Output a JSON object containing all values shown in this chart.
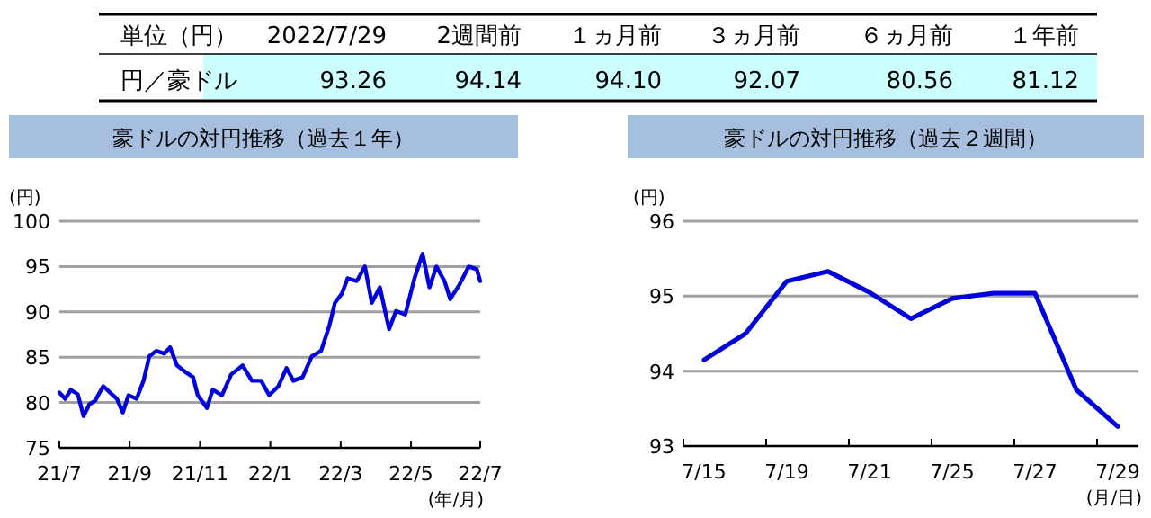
{
  "chart_data": [
    {
      "type": "other",
      "annotations": [
        "単位（円）",
        "2022/7/29",
        "2週間前",
        "１ヵ月前",
        "３ヵ月前",
        "６ヵ月前",
        "１年前",
        "円／豪ドル",
        "93.26",
        "94.14",
        "94.10",
        "92.07",
        "80.56",
        "81.12"
      ]
    },
    {
      "type": "line",
      "title": "豪ドルの対円推移（過去１年）",
      "ylabel": "(円)",
      "xlabel": "(年/月)",
      "color": "#0000dd",
      "grid": "y",
      "ylim": [
        75,
        100
      ],
      "yticks": [
        75,
        80,
        85,
        90,
        95,
        100
      ],
      "xlim": [
        "2021-07-29",
        "2022-07-29"
      ],
      "xticks": [
        {
          "value": "2021-07-29",
          "label": "21/7"
        },
        {
          "value": "2021-09-28",
          "label": "21/9"
        },
        {
          "value": "2021-11-28",
          "label": "21/11"
        },
        {
          "value": "2022-01-28",
          "label": "22/1"
        },
        {
          "value": "2022-03-30",
          "label": "22/3"
        },
        {
          "value": "2022-05-30",
          "label": "22/5"
        },
        {
          "value": "2022-07-29",
          "label": "22/7"
        }
      ],
      "x": [
        "2021-07-29",
        "2021-08-03",
        "2021-08-08",
        "2021-08-14",
        "2021-08-19",
        "2021-08-24",
        "2021-08-29",
        "2021-09-05",
        "2021-09-11",
        "2021-09-17",
        "2021-09-22",
        "2021-09-27",
        "2021-10-04",
        "2021-10-10",
        "2021-10-15",
        "2021-10-21",
        "2021-10-28",
        "2021-11-02",
        "2021-11-08",
        "2021-11-15",
        "2021-11-22",
        "2021-11-26",
        "2021-12-04",
        "2021-12-09",
        "2021-12-17",
        "2021-12-25",
        "2022-01-04",
        "2022-01-12",
        "2022-01-20",
        "2022-01-27",
        "2022-02-04",
        "2022-02-11",
        "2022-02-17",
        "2022-02-25",
        "2022-03-05",
        "2022-03-13",
        "2022-03-20",
        "2022-03-25",
        "2022-03-31",
        "2022-04-05",
        "2022-04-13",
        "2022-04-20",
        "2022-04-26",
        "2022-05-03",
        "2022-05-11",
        "2022-05-17",
        "2022-05-25",
        "2022-06-02",
        "2022-06-09",
        "2022-06-15",
        "2022-06-21",
        "2022-06-28",
        "2022-07-03",
        "2022-07-11",
        "2022-07-19",
        "2022-07-26",
        "2022-07-29"
      ],
      "values": [
        81.1,
        80.4,
        81.4,
        80.9,
        78.5,
        79.8,
        80.2,
        81.8,
        81.1,
        80.4,
        78.9,
        80.8,
        80.4,
        82.4,
        85.1,
        85.7,
        85.4,
        86.1,
        84.1,
        83.4,
        82.8,
        80.8,
        79.4,
        81.4,
        80.8,
        83.1,
        84.1,
        82.4,
        82.4,
        80.8,
        81.8,
        83.8,
        82.4,
        82.8,
        85.1,
        85.7,
        88.4,
        91.0,
        92.0,
        93.7,
        93.4,
        95.0,
        91.0,
        92.7,
        88.1,
        90.1,
        89.7,
        93.7,
        96.4,
        92.7,
        95.0,
        93.4,
        91.4,
        93.0,
        95.0,
        94.7,
        93.4
      ]
    },
    {
      "type": "line",
      "title": "豪ドルの対円推移（過去２週間）",
      "ylabel": "(円)",
      "xlabel": "(月/日)",
      "color": "#0000dd",
      "grid": "y",
      "ylim": [
        93,
        96
      ],
      "yticks": [
        93,
        94,
        95,
        96
      ],
      "categories": [
        "7/15",
        null,
        "7/19",
        null,
        "7/21",
        null,
        "7/25",
        null,
        "7/27",
        null,
        "7/29"
      ],
      "values": [
        94.15,
        94.5,
        95.2,
        95.33,
        95.05,
        94.7,
        94.97,
        95.04,
        95.04,
        93.75,
        93.26
      ]
    }
  ]
}
